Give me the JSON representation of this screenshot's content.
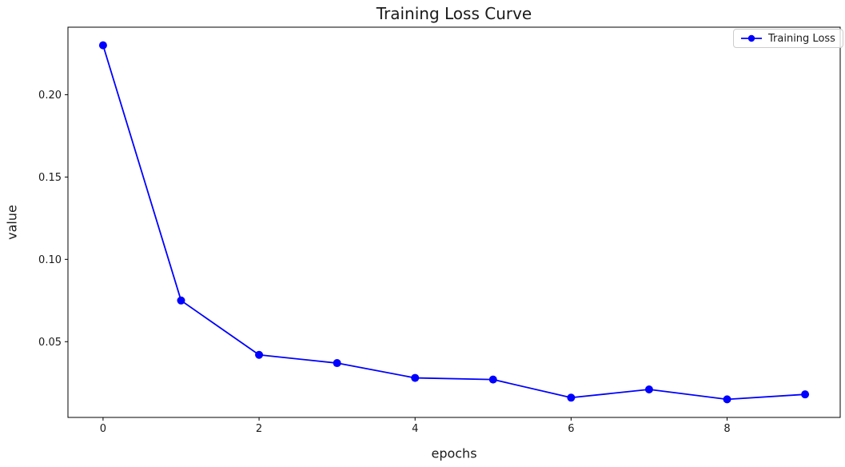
{
  "figure": {
    "title": "Training Loss Curve",
    "xlabel": "epochs",
    "ylabel": "value"
  },
  "chart_data": {
    "type": "line",
    "title": "Training Loss Curve",
    "xlabel": "epochs",
    "ylabel": "value",
    "series": [
      {
        "name": "Training Loss",
        "color": "#0000ff",
        "marker": "circle",
        "x": [
          0,
          1,
          2,
          3,
          4,
          5,
          6,
          7,
          8,
          9
        ],
        "y": [
          0.23,
          0.075,
          0.042,
          0.037,
          0.028,
          0.027,
          0.016,
          0.021,
          0.015,
          0.018
        ]
      }
    ],
    "xticks": [
      0,
      2,
      4,
      6,
      8
    ],
    "xtick_labels": [
      "0",
      "2",
      "4",
      "6",
      "8"
    ],
    "yticks": [
      0.05,
      0.1,
      0.15,
      0.2
    ],
    "ytick_labels": [
      "0.05",
      "0.10",
      "0.15",
      "0.20"
    ],
    "xlim": [
      -0.45,
      9.45
    ],
    "ylim": [
      0.004,
      0.241
    ],
    "grid": false,
    "legend_position": "upper right",
    "axis_color": "#000000",
    "tick_label_color": "#1a1a1a"
  }
}
